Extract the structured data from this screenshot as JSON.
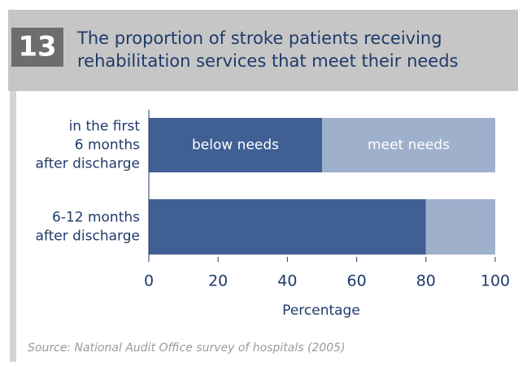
{
  "chart_data": {
    "type": "stacked_barh",
    "figure_number": "13",
    "title": [
      "The proportion of stroke patients receiving",
      "rehabilitation services that meet their needs"
    ],
    "categories": [
      [
        "in the first",
        "6 months",
        "after discharge"
      ],
      [
        "6-12 months",
        "after discharge"
      ]
    ],
    "series": [
      {
        "name": "below needs",
        "color": "#405f93",
        "values": [
          50,
          80
        ]
      },
      {
        "name": "meet needs",
        "color": "#9eb0cc",
        "values": [
          50,
          20
        ]
      }
    ],
    "xlim": [
      0,
      100
    ],
    "xticks": [
      0,
      20,
      40,
      60,
      80,
      100
    ],
    "xlabel": "Percentage",
    "source": "Source: National Audit Office survey of hospitals (2005)"
  }
}
